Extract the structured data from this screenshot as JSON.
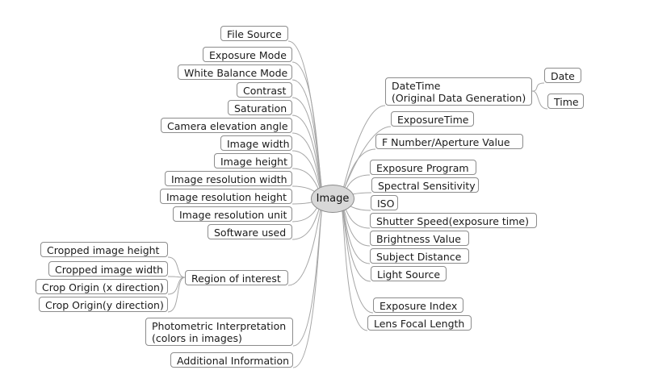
{
  "root": {
    "label": "Image"
  },
  "left_nodes": [
    {
      "id": "file-source",
      "label": "File Source"
    },
    {
      "id": "exposure-mode",
      "label": "Exposure Mode"
    },
    {
      "id": "white-balance-mode",
      "label": "White Balance Mode"
    },
    {
      "id": "contrast",
      "label": "Contrast"
    },
    {
      "id": "saturation",
      "label": "Saturation"
    },
    {
      "id": "camera-elevation-angle",
      "label": "Camera elevation angle"
    },
    {
      "id": "image-width",
      "label": "Image width"
    },
    {
      "id": "image-height",
      "label": "Image height"
    },
    {
      "id": "image-resolution-width",
      "label": "Image resolution width"
    },
    {
      "id": "image-resolution-height",
      "label": "Image resolution height"
    },
    {
      "id": "image-resolution-unit",
      "label": "Image resolution unit"
    },
    {
      "id": "software-used",
      "label": "Software used"
    },
    {
      "id": "region-of-interest",
      "label": "Region of interest"
    },
    {
      "id": "photometric-interpretation",
      "label": "Photometric Interpretation\n(colors in images)"
    },
    {
      "id": "additional-information",
      "label": "Additional Information"
    }
  ],
  "roi_children": [
    {
      "id": "cropped-image-height",
      "label": "Cropped image height"
    },
    {
      "id": "cropped-image-width",
      "label": "Cropped image width"
    },
    {
      "id": "crop-origin-x",
      "label": "Crop Origin (x direction)"
    },
    {
      "id": "crop-origin-y",
      "label": "Crop Origin(y direction)"
    }
  ],
  "right_nodes": [
    {
      "id": "datetime",
      "label": "DateTime\n(Original Data Generation)"
    },
    {
      "id": "exposure-time",
      "label": "ExposureTime"
    },
    {
      "id": "f-number",
      "label": "F Number/Aperture Value"
    },
    {
      "id": "exposure-program",
      "label": "Exposure Program"
    },
    {
      "id": "spectral-sensitivity",
      "label": "Spectral Sensitivity"
    },
    {
      "id": "iso",
      "label": "ISO"
    },
    {
      "id": "shutter-speed",
      "label": "Shutter Speed(exposure time)"
    },
    {
      "id": "brightness-value",
      "label": "Brightness Value"
    },
    {
      "id": "subject-distance",
      "label": "Subject Distance"
    },
    {
      "id": "light-source",
      "label": "Light Source"
    },
    {
      "id": "exposure-index",
      "label": "Exposure Index"
    },
    {
      "id": "lens-focal-length",
      "label": "Lens Focal Length"
    }
  ],
  "datetime_children": [
    {
      "id": "date",
      "label": "Date"
    },
    {
      "id": "time",
      "label": "Time"
    }
  ],
  "colors": {
    "line": "#a6a6a6",
    "border": "#8c8c8c",
    "root_fill": "#d8d8d8"
  }
}
